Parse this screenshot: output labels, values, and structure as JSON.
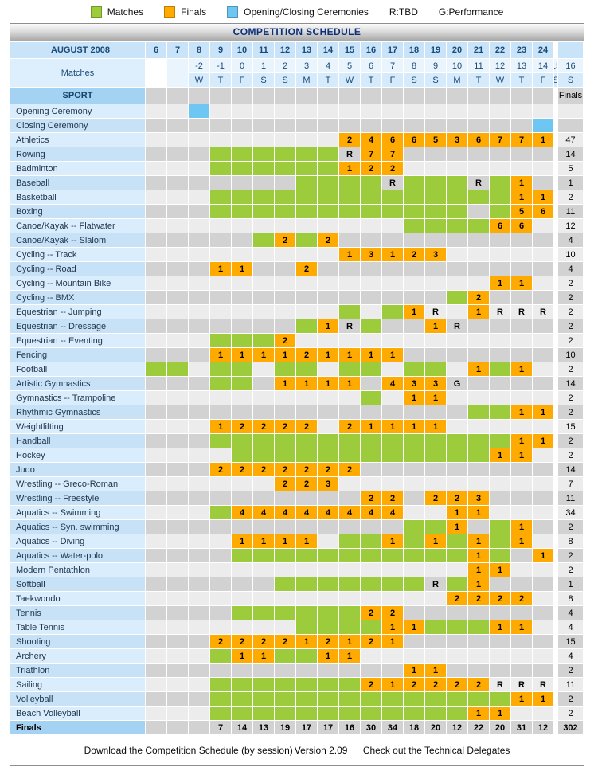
{
  "title": "COMPETITION SCHEDULE",
  "legend": {
    "matches": "Matches",
    "finals": "Finals",
    "ceremonies": "Opening/Closing Ceremonies",
    "r_note": "R:TBD",
    "g_note": "G:Performance"
  },
  "colors": {
    "matches_green": "#9ccb3b",
    "finals_orange": "#ffaa00",
    "ceremony_blue": "#6ec6f2",
    "header_blue": "#c9e4f8",
    "title_navy": "#0b2f7a"
  },
  "header": {
    "month_label": "AUGUST 2008",
    "days": [
      "6",
      "7",
      "8",
      "9",
      "10",
      "11",
      "12",
      "13",
      "14",
      "15",
      "16",
      "17",
      "18",
      "19",
      "20",
      "21",
      "22",
      "23",
      "24"
    ],
    "matches_label": "Matches",
    "match_days": [
      "-2",
      "-1",
      "0",
      "1",
      "2",
      "3",
      "4",
      "5",
      "6",
      "7",
      "8",
      "9",
      "10",
      "11",
      "12",
      "13",
      "14",
      "15",
      "16"
    ],
    "weekdays": [
      "W",
      "T",
      "F",
      "S",
      "S",
      "M",
      "T",
      "W",
      "T",
      "F",
      "S",
      "S",
      "M",
      "T",
      "W",
      "T",
      "F",
      "S",
      "S"
    ],
    "sport_label": "SPORT",
    "finals_label": "Finals"
  },
  "cell_legend": {
    "g": "matches",
    "b": "ceremony",
    "R": "TBD",
    "G": "performance",
    "number": "finals count"
  },
  "rows": [
    {
      "label": "Opening Ceremony",
      "cells": [
        "",
        "",
        "b",
        "",
        "",
        "",
        "",
        "",
        "",
        "",
        "",
        "",
        "",
        "",
        "",
        "",
        "",
        "",
        ""
      ],
      "finals": ""
    },
    {
      "label": "Closing Ceremony",
      "cells": [
        "",
        "",
        "",
        "",
        "",
        "",
        "",
        "",
        "",
        "",
        "",
        "",
        "",
        "",
        "",
        "",
        "",
        "",
        "b"
      ],
      "finals": ""
    },
    {
      "label": "Athletics",
      "cells": [
        "",
        "",
        "",
        "",
        "",
        "",
        "",
        "",
        "",
        "2",
        "4",
        "6",
        "6",
        "5",
        "3",
        "6",
        "7",
        "7",
        "1"
      ],
      "finals": "47"
    },
    {
      "label": "Rowing",
      "cells": [
        "",
        "",
        "",
        "g",
        "g",
        "g",
        "g",
        "g",
        "g",
        "R",
        "7",
        "7",
        "",
        "",
        "",
        "",
        "",
        "",
        ""
      ],
      "finals": "14"
    },
    {
      "label": "Badminton",
      "cells": [
        "",
        "",
        "",
        "g",
        "g",
        "g",
        "g",
        "g",
        "g",
        "1",
        "2",
        "2",
        "",
        "",
        "",
        "",
        "",
        "",
        ""
      ],
      "finals": "5"
    },
    {
      "label": "Baseball",
      "cells": [
        "",
        "",
        "",
        "",
        "",
        "",
        "",
        "g",
        "g",
        "g",
        "g",
        "R",
        "g",
        "g",
        "g",
        "R",
        "g",
        "1",
        ""
      ],
      "finals": "1"
    },
    {
      "label": "Basketball",
      "cells": [
        "",
        "",
        "",
        "g",
        "g",
        "g",
        "g",
        "g",
        "g",
        "g",
        "g",
        "g",
        "g",
        "g",
        "g",
        "g",
        "g",
        "1",
        "1"
      ],
      "finals": "2"
    },
    {
      "label": "Boxing",
      "cells": [
        "",
        "",
        "",
        "g",
        "g",
        "g",
        "g",
        "g",
        "g",
        "g",
        "g",
        "g",
        "g",
        "g",
        "g",
        "",
        "g",
        "5",
        "6"
      ],
      "finals": "11"
    },
    {
      "label": "Canoe/Kayak -- Flatwater",
      "cells": [
        "",
        "",
        "",
        "",
        "",
        "",
        "",
        "",
        "",
        "",
        "",
        "",
        "g",
        "g",
        "g",
        "g",
        "6",
        "6",
        ""
      ],
      "finals": "12"
    },
    {
      "label": "Canoe/Kayak -- Slalom",
      "cells": [
        "",
        "",
        "",
        "",
        "",
        "g",
        "2",
        "g",
        "2",
        "",
        "",
        "",
        "",
        "",
        "",
        "",
        "",
        "",
        ""
      ],
      "finals": "4"
    },
    {
      "label": "Cycling -- Track",
      "cells": [
        "",
        "",
        "",
        "",
        "",
        "",
        "",
        "",
        "",
        "1",
        "3",
        "1",
        "2",
        "3",
        "",
        "",
        "",
        "",
        ""
      ],
      "finals": "10"
    },
    {
      "label": "Cycling -- Road",
      "cells": [
        "",
        "",
        "",
        "1",
        "1",
        "",
        "",
        "2",
        "",
        "",
        "",
        "",
        "",
        "",
        "",
        "",
        "",
        "",
        ""
      ],
      "finals": "4"
    },
    {
      "label": "Cycling -- Mountain Bike",
      "cells": [
        "",
        "",
        "",
        "",
        "",
        "",
        "",
        "",
        "",
        "",
        "",
        "",
        "",
        "",
        "",
        "",
        "1",
        "1",
        ""
      ],
      "finals": "2"
    },
    {
      "label": "Cycling -- BMX",
      "cells": [
        "",
        "",
        "",
        "",
        "",
        "",
        "",
        "",
        "",
        "",
        "",
        "",
        "",
        "",
        "g",
        "2",
        "",
        "",
        ""
      ],
      "finals": "2"
    },
    {
      "label": "Equestrian -- Jumping",
      "cells": [
        "",
        "",
        "",
        "",
        "",
        "",
        "",
        "",
        "",
        "g",
        "",
        "g",
        "1",
        "R",
        "",
        "1",
        "R",
        "R",
        "R"
      ],
      "finals": "2"
    },
    {
      "label": "Equestrian -- Dressage",
      "cells": [
        "",
        "",
        "",
        "",
        "",
        "",
        "",
        "g",
        "1",
        "R",
        "g",
        "",
        "",
        "1",
        "R",
        "",
        "",
        "",
        ""
      ],
      "finals": "2"
    },
    {
      "label": "Equestrian -- Eventing",
      "cells": [
        "",
        "",
        "",
        "g",
        "g",
        "g",
        "2",
        "",
        "",
        "",
        "",
        "",
        "",
        "",
        "",
        "",
        "",
        "",
        ""
      ],
      "finals": "2"
    },
    {
      "label": "Fencing",
      "cells": [
        "",
        "",
        "",
        "1",
        "1",
        "1",
        "1",
        "2",
        "1",
        "1",
        "1",
        "1",
        "",
        "",
        "",
        "",
        "",
        "",
        ""
      ],
      "finals": "10"
    },
    {
      "label": "Football",
      "cells": [
        "g",
        "g",
        "",
        "g",
        "g",
        "",
        "g",
        "g",
        "",
        "g",
        "g",
        "",
        "g",
        "g",
        "",
        "1",
        "g",
        "1",
        ""
      ],
      "finals": "2"
    },
    {
      "label": "Artistic Gymnastics",
      "cells": [
        "",
        "",
        "",
        "g",
        "g",
        "",
        "1",
        "1",
        "1",
        "1",
        "",
        "4",
        "3",
        "3",
        "G",
        "",
        "",
        "",
        ""
      ],
      "finals": "14"
    },
    {
      "label": "Gymnastics -- Trampoline",
      "cells": [
        "",
        "",
        "",
        "",
        "",
        "",
        "",
        "",
        "",
        "",
        "g",
        "",
        "1",
        "1",
        "",
        "",
        "",
        "",
        ""
      ],
      "finals": "2"
    },
    {
      "label": "Rhythmic Gymnastics",
      "cells": [
        "",
        "",
        "",
        "",
        "",
        "",
        "",
        "",
        "",
        "",
        "",
        "",
        "",
        "",
        "",
        "g",
        "g",
        "1",
        "1"
      ],
      "finals": "2"
    },
    {
      "label": "Weightlifting",
      "cells": [
        "",
        "",
        "",
        "1",
        "2",
        "2",
        "2",
        "2",
        "",
        "2",
        "1",
        "1",
        "1",
        "1",
        "",
        "",
        "",
        "",
        ""
      ],
      "finals": "15"
    },
    {
      "label": "Handball",
      "cells": [
        "",
        "",
        "",
        "g",
        "g",
        "g",
        "g",
        "g",
        "g",
        "g",
        "g",
        "g",
        "g",
        "g",
        "g",
        "g",
        "g",
        "1",
        "1"
      ],
      "finals": "2"
    },
    {
      "label": "Hockey",
      "cells": [
        "",
        "",
        "",
        "",
        "g",
        "g",
        "g",
        "g",
        "g",
        "g",
        "g",
        "g",
        "g",
        "g",
        "g",
        "g",
        "1",
        "1",
        ""
      ],
      "finals": "2"
    },
    {
      "label": "Judo",
      "cells": [
        "",
        "",
        "",
        "2",
        "2",
        "2",
        "2",
        "2",
        "2",
        "2",
        "",
        "",
        "",
        "",
        "",
        "",
        "",
        "",
        ""
      ],
      "finals": "14"
    },
    {
      "label": "Wrestling -- Greco-Roman",
      "cells": [
        "",
        "",
        "",
        "",
        "",
        "",
        "2",
        "2",
        "3",
        "",
        "",
        "",
        "",
        "",
        "",
        "",
        "",
        "",
        ""
      ],
      "finals": "7"
    },
    {
      "label": "Wrestling -- Freestyle",
      "cells": [
        "",
        "",
        "",
        "",
        "",
        "",
        "",
        "",
        "",
        "",
        "2",
        "2",
        "",
        "2",
        "2",
        "3",
        "",
        "",
        ""
      ],
      "finals": "11"
    },
    {
      "label": "Aquatics -- Swimming",
      "cells": [
        "",
        "",
        "",
        "g",
        "4",
        "4",
        "4",
        "4",
        "4",
        "4",
        "4",
        "4",
        "",
        "",
        "1",
        "1",
        "",
        "",
        ""
      ],
      "finals": "34"
    },
    {
      "label": "Aquatics -- Syn. swimming",
      "cells": [
        "",
        "",
        "",
        "",
        "",
        "",
        "",
        "",
        "",
        "",
        "",
        "",
        "g",
        "g",
        "1",
        "",
        "g",
        "1",
        ""
      ],
      "finals": "2"
    },
    {
      "label": "Aquatics -- Diving",
      "cells": [
        "",
        "",
        "",
        "",
        "1",
        "1",
        "1",
        "1",
        "",
        "g",
        "g",
        "1",
        "g",
        "1",
        "g",
        "1",
        "g",
        "1",
        ""
      ],
      "finals": "8"
    },
    {
      "label": "Aquatics -- Water-polo",
      "cells": [
        "",
        "",
        "",
        "",
        "g",
        "g",
        "g",
        "g",
        "g",
        "g",
        "g",
        "g",
        "g",
        "g",
        "g",
        "1",
        "g",
        "",
        "1"
      ],
      "finals": "2"
    },
    {
      "label": "Modern Pentathlon",
      "cells": [
        "",
        "",
        "",
        "",
        "",
        "",
        "",
        "",
        "",
        "",
        "",
        "",
        "",
        "",
        "",
        "1",
        "1",
        "",
        ""
      ],
      "finals": "2"
    },
    {
      "label": "Softball",
      "cells": [
        "",
        "",
        "",
        "",
        "",
        "",
        "g",
        "g",
        "g",
        "g",
        "g",
        "g",
        "g",
        "R",
        "g",
        "1",
        "",
        "",
        ""
      ],
      "finals": "1"
    },
    {
      "label": "Taekwondo",
      "cells": [
        "",
        "",
        "",
        "",
        "",
        "",
        "",
        "",
        "",
        "",
        "",
        "",
        "",
        "",
        "2",
        "2",
        "2",
        "2",
        ""
      ],
      "finals": "8"
    },
    {
      "label": "Tennis",
      "cells": [
        "",
        "",
        "",
        "",
        "g",
        "g",
        "g",
        "g",
        "g",
        "g",
        "2",
        "2",
        "",
        "",
        "",
        "",
        "",
        "",
        ""
      ],
      "finals": "4"
    },
    {
      "label": "Table Tennis",
      "cells": [
        "",
        "",
        "",
        "",
        "",
        "",
        "",
        "g",
        "g",
        "g",
        "g",
        "1",
        "1",
        "g",
        "g",
        "g",
        "1",
        "1",
        ""
      ],
      "finals": "4"
    },
    {
      "label": "Shooting",
      "cells": [
        "",
        "",
        "",
        "2",
        "2",
        "2",
        "2",
        "1",
        "2",
        "1",
        "2",
        "1",
        "",
        "",
        "",
        "",
        "",
        "",
        ""
      ],
      "finals": "15"
    },
    {
      "label": "Archery",
      "cells": [
        "",
        "",
        "",
        "g",
        "1",
        "1",
        "g",
        "g",
        "1",
        "1",
        "",
        "",
        "",
        "",
        "",
        "",
        "",
        "",
        ""
      ],
      "finals": "4"
    },
    {
      "label": "Triathlon",
      "cells": [
        "",
        "",
        "",
        "",
        "",
        "",
        "",
        "",
        "",
        "",
        "",
        "",
        "1",
        "1",
        "",
        "",
        "",
        "",
        ""
      ],
      "finals": "2"
    },
    {
      "label": "Sailing",
      "cells": [
        "",
        "",
        "",
        "g",
        "g",
        "g",
        "g",
        "g",
        "g",
        "g",
        "2",
        "1",
        "2",
        "2",
        "2",
        "2",
        "R",
        "R",
        "R"
      ],
      "finals": "11"
    },
    {
      "label": "Volleyball",
      "cells": [
        "",
        "",
        "",
        "g",
        "g",
        "g",
        "g",
        "g",
        "g",
        "g",
        "g",
        "g",
        "g",
        "g",
        "g",
        "g",
        "g",
        "1",
        "1"
      ],
      "finals": "2"
    },
    {
      "label": "Beach Volleyball",
      "cells": [
        "",
        "",
        "",
        "g",
        "g",
        "g",
        "g",
        "g",
        "g",
        "g",
        "g",
        "g",
        "g",
        "g",
        "g",
        "1",
        "1",
        "",
        ""
      ],
      "finals": "2"
    }
  ],
  "totals": {
    "label": "Finals",
    "cells": [
      "",
      "",
      "",
      "7",
      "14",
      "13",
      "19",
      "17",
      "17",
      "16",
      "30",
      "34",
      "18",
      "20",
      "12",
      "22",
      "20",
      "31",
      "12"
    ],
    "total": "302"
  },
  "footer": {
    "download_link": "Download the Competition Schedule (by session)",
    "version": "Version 2.09",
    "delegates_link": "Check out the Technical Delegates"
  }
}
